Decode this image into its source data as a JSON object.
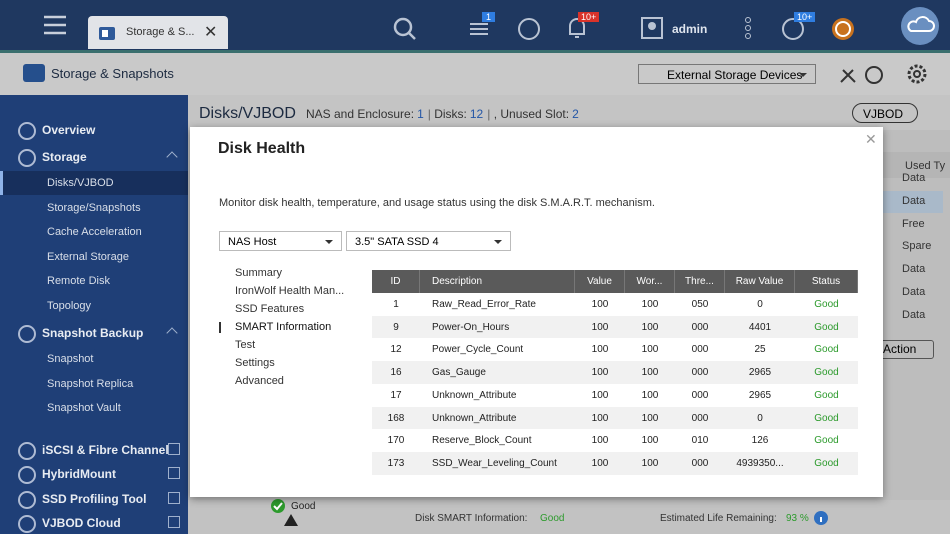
{
  "topbar": {
    "tab_title": "Storage & S...",
    "badges": [
      "1",
      "10+",
      "10+"
    ],
    "user": "admin"
  },
  "app_header": {
    "title": "Storage & Snapshots",
    "device_select": "External Storage Devices"
  },
  "sidebar": {
    "sections": [
      {
        "label": "Overview",
        "items": []
      },
      {
        "label": "Storage",
        "items": [
          "Disks/VJBOD",
          "Storage/Snapshots",
          "Cache Acceleration",
          "External Storage",
          "Remote Disk",
          "Topology"
        ]
      },
      {
        "label": "Snapshot Backup",
        "items": [
          "Snapshot",
          "Snapshot Replica",
          "Snapshot Vault"
        ]
      },
      {
        "label": "iSCSI & Fibre Channel",
        "items": []
      },
      {
        "label": "HybridMount",
        "items": []
      },
      {
        "label": "SSD Profiling Tool",
        "items": []
      },
      {
        "label": "VJBOD Cloud",
        "items": []
      }
    ]
  },
  "main": {
    "title": "Disks/VJBOD",
    "summary": [
      "NAS and Enclosure:",
      "1",
      "Disks:",
      "12",
      ", Unused Slot:",
      "2"
    ],
    "button": "VJBOD",
    "column_header": "Used Ty",
    "used_types": [
      "Data",
      "Data",
      "Free",
      "Spare",
      "Data",
      "Data",
      "Data"
    ],
    "action": "Action",
    "disk_status": "Good",
    "smart_label": "Disk SMART Information:",
    "smart_value": "Good",
    "life_label": "Estimated Life Remaining:",
    "life_value": "93 %"
  },
  "modal": {
    "title": "Disk Health",
    "description": "Monitor disk health, temperature, and usage status using the disk S.M.A.R.T. mechanism.",
    "selects": [
      "NAS Host",
      "3.5\" SATA SSD 4"
    ],
    "menu": [
      "Summary",
      "IronWolf Health Man...",
      "SSD Features",
      "SMART Information",
      "Test",
      "Settings",
      "Advanced"
    ],
    "table": {
      "columns": [
        "ID",
        "Description",
        "Value",
        "Wor...",
        "Thre...",
        "Raw Value",
        "Status"
      ],
      "rows": [
        [
          "1",
          "Raw_Read_Error_Rate",
          "100",
          "100",
          "050",
          "0",
          "Good"
        ],
        [
          "9",
          "Power-On_Hours",
          "100",
          "100",
          "000",
          "4401",
          "Good"
        ],
        [
          "12",
          "Power_Cycle_Count",
          "100",
          "100",
          "000",
          "25",
          "Good"
        ],
        [
          "16",
          "Gas_Gauge",
          "100",
          "100",
          "000",
          "2965",
          "Good"
        ],
        [
          "17",
          "Unknown_Attribute",
          "100",
          "100",
          "000",
          "2965",
          "Good"
        ],
        [
          "168",
          "Unknown_Attribute",
          "100",
          "100",
          "000",
          "0",
          "Good"
        ],
        [
          "170",
          "Reserve_Block_Count",
          "100",
          "100",
          "010",
          "126",
          "Good"
        ],
        [
          "173",
          "SSD_Wear_Leveling_Count",
          "100",
          "100",
          "000",
          "4939350...",
          "Good"
        ]
      ]
    }
  }
}
